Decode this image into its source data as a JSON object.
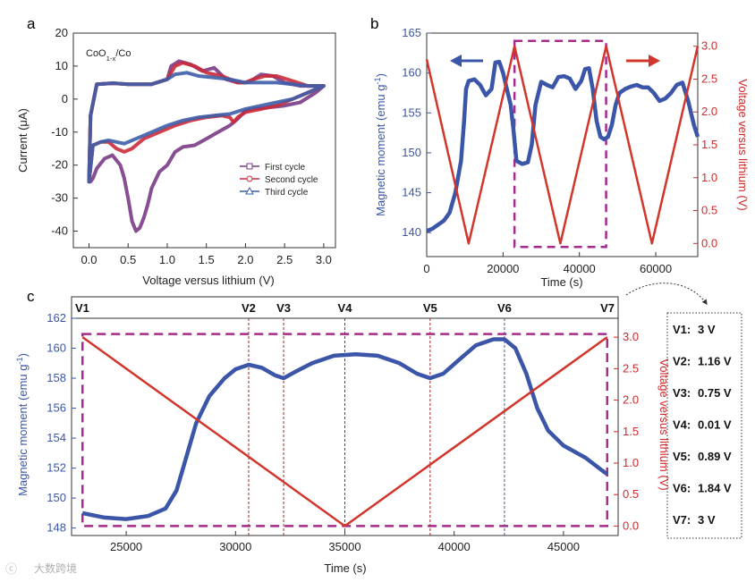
{
  "watermark": "大数跨境",
  "panel_a": {
    "letter": "a",
    "annotation": "CoO1-x/Co",
    "chart_data": {
      "type": "line",
      "xlabel": "Voltage versus lithium (V)",
      "ylabel": "Current (μA)",
      "xlim": [
        -0.2,
        3.15
      ],
      "ylim": [
        -45,
        20
      ],
      "xticks": [
        0.0,
        0.5,
        1.0,
        1.5,
        2.0,
        2.5,
        3.0
      ],
      "yticks": [
        20,
        10,
        0,
        -10,
        -20,
        -30,
        -40
      ],
      "legend_placement": "lower-right",
      "series": [
        {
          "name": "First cycle",
          "color": "#7a3b86",
          "marker": "square",
          "x": [
            0.0,
            0.02,
            0.1,
            0.3,
            0.5,
            0.8,
            1.0,
            1.05,
            1.15,
            1.3,
            1.45,
            1.6,
            1.75,
            1.9,
            2.0,
            2.1,
            2.2,
            2.35,
            2.5,
            2.7,
            2.9,
            3.0,
            2.9,
            2.7,
            2.5,
            2.3,
            2.1,
            2.0,
            1.9,
            1.8,
            1.65,
            1.5,
            1.35,
            1.2,
            1.1,
            1.0,
            0.9,
            0.8,
            0.75,
            0.7,
            0.65,
            0.6,
            0.55,
            0.5,
            0.45,
            0.4,
            0.3,
            0.2,
            0.1,
            0.05,
            0.02
          ],
          "y": [
            -25,
            -5,
            4.5,
            4.8,
            4.5,
            4.5,
            6,
            10,
            11.5,
            10.5,
            8.5,
            9.5,
            6,
            5,
            5,
            6,
            7.5,
            7,
            5,
            4,
            4,
            4,
            2,
            -1,
            -2,
            -2.5,
            -3,
            -3.5,
            -6,
            -8,
            -10,
            -12,
            -14,
            -14.5,
            -16,
            -20,
            -22,
            -27,
            -32,
            -36,
            -39,
            -40,
            -37,
            -30,
            -24,
            -20,
            -17,
            -18,
            -21,
            -24,
            -25
          ]
        },
        {
          "name": "Second cycle",
          "color": "#cc2b3a",
          "marker": "circle",
          "x": [
            0.0,
            0.02,
            0.1,
            0.3,
            0.5,
            0.8,
            1.0,
            1.1,
            1.2,
            1.35,
            1.5,
            1.7,
            1.9,
            2.0,
            2.1,
            2.25,
            2.4,
            2.6,
            2.8,
            3.0,
            2.8,
            2.6,
            2.4,
            2.2,
            2.0,
            1.9,
            1.85,
            1.8,
            1.7,
            1.5,
            1.3,
            1.1,
            0.9,
            0.7,
            0.55,
            0.45,
            0.35,
            0.25,
            0.15,
            0.05
          ],
          "y": [
            -25,
            -5,
            4.5,
            4.8,
            4.5,
            4.5,
            6,
            10,
            11,
            10,
            8,
            7,
            5,
            5,
            6,
            7,
            7,
            5.5,
            4,
            4,
            2,
            0,
            -2,
            -3,
            -4,
            -5.5,
            -7,
            -5.5,
            -5,
            -5.5,
            -6.5,
            -8,
            -10,
            -12,
            -15,
            -16,
            -15,
            -13,
            -13,
            -14
          ]
        },
        {
          "name": "Third cycle",
          "color": "#3d5ea8",
          "marker": "triangle",
          "x": [
            0.0,
            0.02,
            0.1,
            0.3,
            0.5,
            0.8,
            1.0,
            1.1,
            1.25,
            1.4,
            1.6,
            1.8,
            2.0,
            2.2,
            2.4,
            2.6,
            2.8,
            3.0,
            2.8,
            2.6,
            2.4,
            2.2,
            2.0,
            1.8,
            1.6,
            1.4,
            1.2,
            1.0,
            0.8,
            0.6,
            0.45,
            0.35,
            0.25,
            0.15,
            0.05
          ],
          "y": [
            -25,
            -5,
            4.5,
            4.8,
            4.5,
            4.5,
            6,
            7.5,
            8,
            7,
            6.5,
            6,
            5,
            5,
            5,
            4.5,
            4,
            4,
            2,
            0,
            -1,
            -2,
            -3,
            -4.5,
            -5,
            -5.5,
            -6.5,
            -8,
            -10,
            -12,
            -13.5,
            -13,
            -12.5,
            -13,
            -14
          ]
        }
      ]
    }
  },
  "panel_b": {
    "letter": "b",
    "chart_data": {
      "type": "line",
      "xlabel": "Time (s)",
      "ylabel": "Magnetic moment (emu g-1)",
      "ylabel_right": "Voltage versus lithium (V)",
      "xlim": [
        0,
        71000
      ],
      "ylim": [
        137,
        165
      ],
      "ylim_right": [
        -0.2,
        3.2
      ],
      "xticks": [
        0,
        20000,
        40000,
        60000
      ],
      "yticks": [
        165,
        160,
        155,
        150,
        145,
        140
      ],
      "yticks_right": [
        3.0,
        2.5,
        2.0,
        1.5,
        1.0,
        0.5,
        0.0
      ],
      "highlight_box": {
        "x": [
          23000,
          47000
        ],
        "y_right": [
          0.0,
          3.0
        ]
      },
      "series": [
        {
          "name": "magnetic moment",
          "axis": "left",
          "color": "#3b56a8",
          "x": [
            0,
            1500,
            3000,
            4500,
            6000,
            7500,
            9000,
            9800,
            10300,
            11000,
            12500,
            14000,
            15500,
            17000,
            18000,
            19000,
            20000,
            21000,
            22000,
            22700,
            23500,
            25000,
            26500,
            27500,
            28500,
            30000,
            31500,
            33000,
            34500,
            36000,
            37500,
            39000,
            40500,
            41500,
            42500,
            43500,
            44500,
            45500,
            46500,
            47500,
            48500,
            49500,
            50500,
            52000,
            53500,
            55000,
            56500,
            58000,
            59500,
            61000,
            62500,
            64000,
            65500,
            67000,
            68500,
            70000,
            71000
          ],
          "y": [
            140.2,
            140.5,
            141,
            141.5,
            142.5,
            145,
            149,
            154,
            158,
            159,
            159.2,
            158.5,
            157.2,
            158,
            161.3,
            161.4,
            160,
            158,
            156,
            153,
            149,
            148.6,
            148.8,
            151,
            156,
            158.9,
            158.5,
            158.2,
            159.5,
            159.6,
            159.3,
            158,
            159,
            160.5,
            160.6,
            158,
            154,
            152,
            151.7,
            152,
            153.5,
            156,
            157.5,
            158,
            158.3,
            158.5,
            158.2,
            158.2,
            157.5,
            156.5,
            156.8,
            157.5,
            158.5,
            158.8,
            156.5,
            153.5,
            152
          ]
        },
        {
          "name": "voltage",
          "axis": "right",
          "color": "#d1352b",
          "x": [
            0,
            11000,
            23000,
            35000,
            47000,
            59000,
            71000
          ],
          "y": [
            2.8,
            0.0,
            3.0,
            0.0,
            3.0,
            0.0,
            3.0
          ]
        }
      ]
    }
  },
  "panel_c": {
    "letter": "c",
    "chart_data": {
      "type": "line",
      "xlabel": "Time (s)",
      "ylabel": "Magnetic moment (emu g-1)",
      "ylabel_right": "Voltage versus lithium (V)",
      "xlim": [
        22500,
        47500
      ],
      "ylim": [
        147.5,
        162
      ],
      "ylim_right": [
        -0.15,
        3.3
      ],
      "xticks": [
        25000,
        30000,
        35000,
        40000,
        45000
      ],
      "yticks": [
        162,
        160,
        158,
        156,
        154,
        152,
        150,
        148
      ],
      "yticks_right": [
        3.0,
        2.5,
        2.0,
        1.5,
        1.0,
        0.5,
        0.0
      ],
      "markers": [
        {
          "label": "V1",
          "x": 23000
        },
        {
          "label": "V2",
          "x": 30600
        },
        {
          "label": "V3",
          "x": 32200
        },
        {
          "label": "V4",
          "x": 35000
        },
        {
          "label": "V5",
          "x": 38900
        },
        {
          "label": "V6",
          "x": 42300
        },
        {
          "label": "V7",
          "x": 47000
        }
      ],
      "series": [
        {
          "name": "magnetic moment",
          "axis": "left",
          "color": "#3b56a8",
          "x": [
            23000,
            24000,
            25000,
            26000,
            26800,
            27300,
            27700,
            28200,
            28800,
            29500,
            30000,
            30600,
            31200,
            31800,
            32200,
            32700,
            33500,
            34500,
            35500,
            36500,
            37500,
            38300,
            38900,
            39500,
            40200,
            41000,
            41800,
            42300,
            42800,
            43300,
            43800,
            44300,
            45000,
            46000,
            46800,
            47000
          ],
          "y": [
            149,
            148.7,
            148.6,
            148.8,
            149.3,
            150.5,
            152.5,
            155,
            156.8,
            158,
            158.6,
            158.9,
            158.7,
            158.2,
            158,
            158.4,
            159,
            159.5,
            159.6,
            159.5,
            159,
            158.3,
            158,
            158.3,
            159.2,
            160.2,
            160.6,
            160.6,
            160,
            158.3,
            156,
            154.5,
            153.5,
            152.7,
            151.8,
            151.6
          ]
        },
        {
          "name": "voltage",
          "axis": "right",
          "color": "#d1352b",
          "x": [
            23000,
            35000,
            47000
          ],
          "y": [
            3.0,
            0.0,
            3.0
          ]
        }
      ]
    }
  },
  "voltage_box": {
    "items": [
      {
        "label": "V1:",
        "value": "3 V"
      },
      {
        "label": "V2:",
        "value": "1.16 V"
      },
      {
        "label": "V3:",
        "value": "0.75 V"
      },
      {
        "label": "V4:",
        "value": "0.01 V"
      },
      {
        "label": "V5:",
        "value": "0.89 V"
      },
      {
        "label": "V6:",
        "value": "1.84 V"
      },
      {
        "label": "V7:",
        "value": "3 V"
      }
    ]
  }
}
